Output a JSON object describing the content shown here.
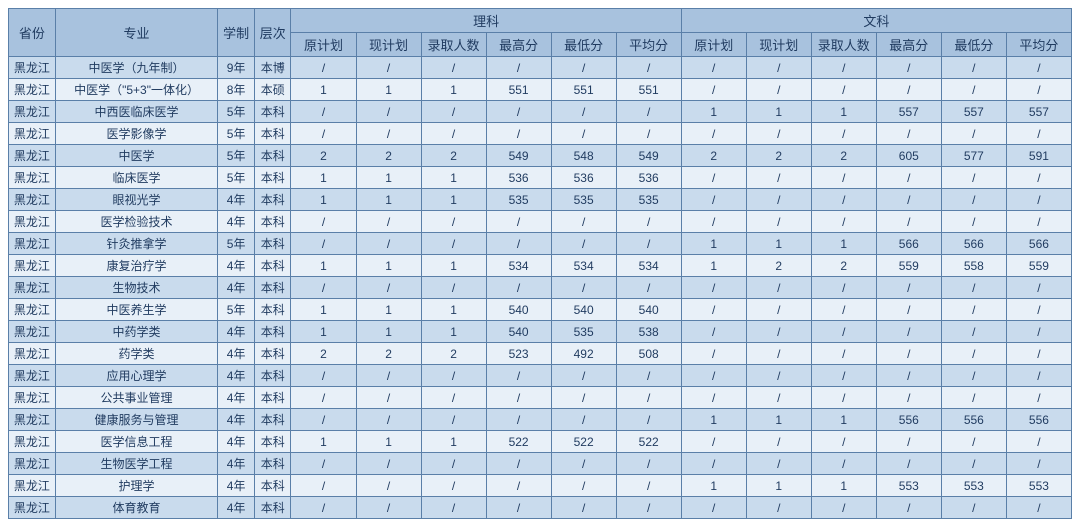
{
  "colors": {
    "header_bg": "#a8c2de",
    "row_even_bg": "#c9dbed",
    "row_odd_bg": "#e8f0f8",
    "border": "#5a7fa8",
    "text": "#1f3a5f"
  },
  "header": {
    "province": "省份",
    "major": "专业",
    "duration": "学制",
    "level": "层次",
    "science": "理科",
    "arts": "文科",
    "sub": {
      "plan_orig": "原计划",
      "plan_now": "现计划",
      "admitted": "录取人数",
      "max": "最高分",
      "min": "最低分",
      "avg": "平均分"
    }
  },
  "rows": [
    {
      "province": "黑龙江",
      "major": "中医学（九年制）",
      "duration": "9年",
      "level": "本博",
      "s": [
        "/",
        "/",
        "/",
        "/",
        "/",
        "/"
      ],
      "a": [
        "/",
        "/",
        "/",
        "/",
        "/",
        "/"
      ]
    },
    {
      "province": "黑龙江",
      "major": "中医学（\"5+3\"一体化）",
      "duration": "8年",
      "level": "本硕",
      "s": [
        "1",
        "1",
        "1",
        "551",
        "551",
        "551"
      ],
      "a": [
        "/",
        "/",
        "/",
        "/",
        "/",
        "/"
      ]
    },
    {
      "province": "黑龙江",
      "major": "中西医临床医学",
      "duration": "5年",
      "level": "本科",
      "s": [
        "/",
        "/",
        "/",
        "/",
        "/",
        "/"
      ],
      "a": [
        "1",
        "1",
        "1",
        "557",
        "557",
        "557"
      ]
    },
    {
      "province": "黑龙江",
      "major": "医学影像学",
      "duration": "5年",
      "level": "本科",
      "s": [
        "/",
        "/",
        "/",
        "/",
        "/",
        "/"
      ],
      "a": [
        "/",
        "/",
        "/",
        "/",
        "/",
        "/"
      ]
    },
    {
      "province": "黑龙江",
      "major": "中医学",
      "duration": "5年",
      "level": "本科",
      "s": [
        "2",
        "2",
        "2",
        "549",
        "548",
        "549"
      ],
      "a": [
        "2",
        "2",
        "2",
        "605",
        "577",
        "591"
      ]
    },
    {
      "province": "黑龙江",
      "major": "临床医学",
      "duration": "5年",
      "level": "本科",
      "s": [
        "1",
        "1",
        "1",
        "536",
        "536",
        "536"
      ],
      "a": [
        "/",
        "/",
        "/",
        "/",
        "/",
        "/"
      ]
    },
    {
      "province": "黑龙江",
      "major": "眼视光学",
      "duration": "4年",
      "level": "本科",
      "s": [
        "1",
        "1",
        "1",
        "535",
        "535",
        "535"
      ],
      "a": [
        "/",
        "/",
        "/",
        "/",
        "/",
        "/"
      ]
    },
    {
      "province": "黑龙江",
      "major": "医学检验技术",
      "duration": "4年",
      "level": "本科",
      "s": [
        "/",
        "/",
        "/",
        "/",
        "/",
        "/"
      ],
      "a": [
        "/",
        "/",
        "/",
        "/",
        "/",
        "/"
      ]
    },
    {
      "province": "黑龙江",
      "major": "针灸推拿学",
      "duration": "5年",
      "level": "本科",
      "s": [
        "/",
        "/",
        "/",
        "/",
        "/",
        "/"
      ],
      "a": [
        "1",
        "1",
        "1",
        "566",
        "566",
        "566"
      ]
    },
    {
      "province": "黑龙江",
      "major": "康复治疗学",
      "duration": "4年",
      "level": "本科",
      "s": [
        "1",
        "1",
        "1",
        "534",
        "534",
        "534"
      ],
      "a": [
        "1",
        "2",
        "2",
        "559",
        "558",
        "559"
      ]
    },
    {
      "province": "黑龙江",
      "major": "生物技术",
      "duration": "4年",
      "level": "本科",
      "s": [
        "/",
        "/",
        "/",
        "/",
        "/",
        "/"
      ],
      "a": [
        "/",
        "/",
        "/",
        "/",
        "/",
        "/"
      ]
    },
    {
      "province": "黑龙江",
      "major": "中医养生学",
      "duration": "5年",
      "level": "本科",
      "s": [
        "1",
        "1",
        "1",
        "540",
        "540",
        "540"
      ],
      "a": [
        "/",
        "/",
        "/",
        "/",
        "/",
        "/"
      ]
    },
    {
      "province": "黑龙江",
      "major": "中药学类",
      "duration": "4年",
      "level": "本科",
      "s": [
        "1",
        "1",
        "1",
        "540",
        "535",
        "538"
      ],
      "a": [
        "/",
        "/",
        "/",
        "/",
        "/",
        "/"
      ]
    },
    {
      "province": "黑龙江",
      "major": "药学类",
      "duration": "4年",
      "level": "本科",
      "s": [
        "2",
        "2",
        "2",
        "523",
        "492",
        "508"
      ],
      "a": [
        "/",
        "/",
        "/",
        "/",
        "/",
        "/"
      ]
    },
    {
      "province": "黑龙江",
      "major": "应用心理学",
      "duration": "4年",
      "level": "本科",
      "s": [
        "/",
        "/",
        "/",
        "/",
        "/",
        "/"
      ],
      "a": [
        "/",
        "/",
        "/",
        "/",
        "/",
        "/"
      ]
    },
    {
      "province": "黑龙江",
      "major": "公共事业管理",
      "duration": "4年",
      "level": "本科",
      "s": [
        "/",
        "/",
        "/",
        "/",
        "/",
        "/"
      ],
      "a": [
        "/",
        "/",
        "/",
        "/",
        "/",
        "/"
      ]
    },
    {
      "province": "黑龙江",
      "major": "健康服务与管理",
      "duration": "4年",
      "level": "本科",
      "s": [
        "/",
        "/",
        "/",
        "/",
        "/",
        "/"
      ],
      "a": [
        "1",
        "1",
        "1",
        "556",
        "556",
        "556"
      ]
    },
    {
      "province": "黑龙江",
      "major": "医学信息工程",
      "duration": "4年",
      "level": "本科",
      "s": [
        "1",
        "1",
        "1",
        "522",
        "522",
        "522"
      ],
      "a": [
        "/",
        "/",
        "/",
        "/",
        "/",
        "/"
      ]
    },
    {
      "province": "黑龙江",
      "major": "生物医学工程",
      "duration": "4年",
      "level": "本科",
      "s": [
        "/",
        "/",
        "/",
        "/",
        "/",
        "/"
      ],
      "a": [
        "/",
        "/",
        "/",
        "/",
        "/",
        "/"
      ]
    },
    {
      "province": "黑龙江",
      "major": "护理学",
      "duration": "4年",
      "level": "本科",
      "s": [
        "/",
        "/",
        "/",
        "/",
        "/",
        "/"
      ],
      "a": [
        "1",
        "1",
        "1",
        "553",
        "553",
        "553"
      ]
    },
    {
      "province": "黑龙江",
      "major": "体育教育",
      "duration": "4年",
      "level": "本科",
      "s": [
        "/",
        "/",
        "/",
        "/",
        "/",
        "/"
      ],
      "a": [
        "/",
        "/",
        "/",
        "/",
        "/",
        "/"
      ]
    }
  ]
}
